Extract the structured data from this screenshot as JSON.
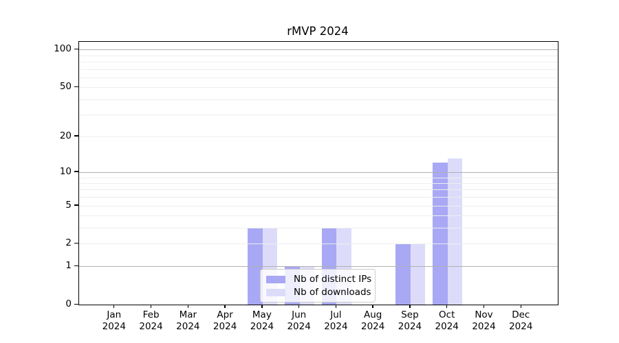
{
  "chart_data": {
    "type": "bar",
    "title": "rMVP 2024",
    "categories": [
      "Jan",
      "Feb",
      "Mar",
      "Apr",
      "May",
      "Jun",
      "Jul",
      "Aug",
      "Sep",
      "Oct",
      "Nov",
      "Dec"
    ],
    "category_year": "2024",
    "series": [
      {
        "name": "Nb of distinct IPs",
        "color": "#a8a8f5",
        "values": [
          0,
          0,
          0,
          0,
          3,
          1,
          3,
          0,
          2,
          12,
          0,
          0
        ]
      },
      {
        "name": "Nb of downloads",
        "color": "#dcdcfa",
        "values": [
          0,
          0,
          0,
          0,
          3,
          1,
          3,
          0,
          2,
          13,
          0,
          0
        ]
      }
    ],
    "yscale": "log1p",
    "ylim": [
      0,
      115
    ],
    "ytick_values": [
      0,
      1,
      2,
      5,
      10,
      20,
      50,
      100
    ],
    "grid": true,
    "grid_major_values": [
      1,
      10,
      100
    ],
    "grid_minor_values": [
      2,
      3,
      4,
      5,
      6,
      7,
      8,
      9,
      20,
      30,
      40,
      50,
      60,
      70,
      80,
      90
    ],
    "legend_position": "lower center",
    "colors": {
      "bar_distinct_ips": "#a8a8f5",
      "bar_downloads": "#dcdcfa",
      "grid_major": "#b0b0b0",
      "grid_minor": "#eeeeee",
      "axis": "#000000",
      "legend_border": "#cccccc"
    }
  }
}
